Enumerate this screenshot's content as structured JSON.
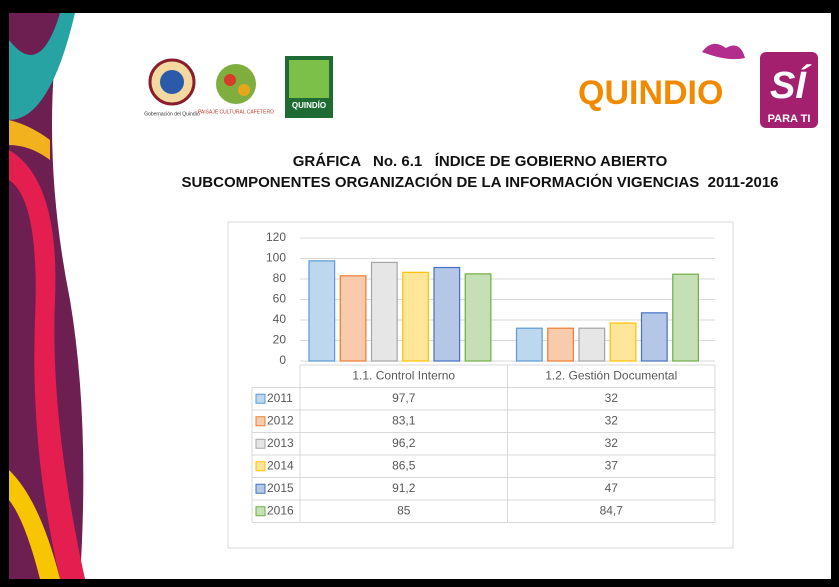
{
  "header": {
    "logo_gobernacion": "Gobernación del Quindío",
    "logo_paisaje": "PAISAJE CULTURAL CAFETERO",
    "logo_quindio": "QUINDÍO",
    "brand": "QUINDIO",
    "brand_si": "SÍ",
    "brand_tagline": "PARA TI"
  },
  "chart_data": {
    "type": "bar",
    "title": "GRÁFICA   No. 6.1   ÍNDICE DE GOBIERNO ABIERTO",
    "subtitle": "SUBCOMPONENTES ORGANIZACIÓN DE LA INFORMACIÓN VIGENCIAS  2011-2016",
    "categories": [
      "1.1. Control Interno",
      "1.2. Gestión Documental"
    ],
    "series": [
      {
        "name": "2011",
        "color": "#bdd7ee",
        "border": "#5b9bd5",
        "values": [
          97.7,
          32
        ],
        "value_labels": [
          "97,7",
          "32"
        ]
      },
      {
        "name": "2012",
        "color": "#f8cbad",
        "border": "#ed7d31",
        "values": [
          83.1,
          32
        ],
        "value_labels": [
          "83,1",
          "32"
        ]
      },
      {
        "name": "2013",
        "color": "#e7e6e6",
        "border": "#a5a5a5",
        "values": [
          96.2,
          32
        ],
        "value_labels": [
          "96,2",
          "32"
        ]
      },
      {
        "name": "2014",
        "color": "#ffe699",
        "border": "#ffc000",
        "values": [
          86.5,
          37
        ],
        "value_labels": [
          "86,5",
          "37"
        ]
      },
      {
        "name": "2015",
        "color": "#b4c7e7",
        "border": "#4472c4",
        "values": [
          91.2,
          47
        ],
        "value_labels": [
          "91,2",
          "47"
        ]
      },
      {
        "name": "2016",
        "color": "#c5e0b4",
        "border": "#70ad47",
        "values": [
          85,
          84.7
        ],
        "value_labels": [
          "85",
          "84,7"
        ]
      }
    ],
    "ylim": [
      0,
      120
    ],
    "yticks": [
      0,
      20,
      40,
      60,
      80,
      100,
      120
    ],
    "grid": true
  }
}
